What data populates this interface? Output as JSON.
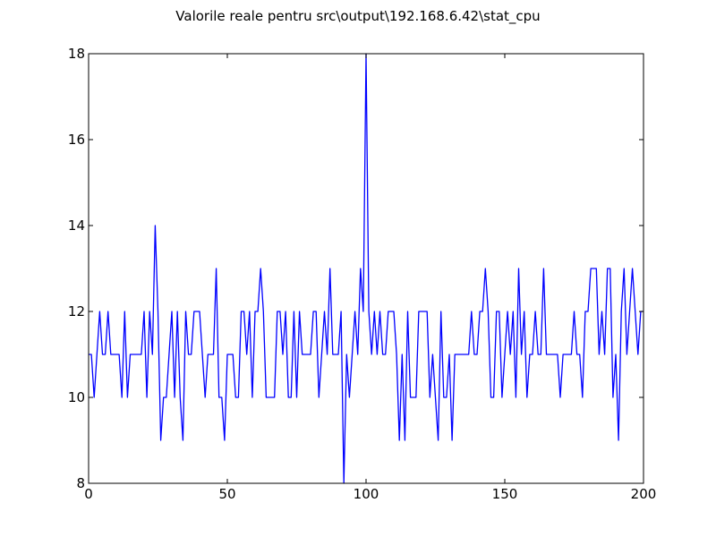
{
  "chart_data": {
    "type": "line",
    "title": "Valorile reale pentru src\\output\\192.168.6.42\\stat_cpu",
    "xlabel": "",
    "ylabel": "",
    "xlim": [
      0,
      200
    ],
    "ylim": [
      8,
      18
    ],
    "xticks": [
      0,
      50,
      100,
      150,
      200
    ],
    "yticks": [
      8,
      10,
      12,
      14,
      16,
      18
    ],
    "grid": false,
    "series": [
      {
        "color": "#0000ff",
        "x": [
          0,
          1,
          2,
          3,
          4,
          5,
          6,
          7,
          8,
          9,
          10,
          11,
          12,
          13,
          14,
          15,
          16,
          17,
          18,
          19,
          20,
          21,
          22,
          23,
          24,
          25,
          26,
          27,
          28,
          29,
          30,
          31,
          32,
          33,
          34,
          35,
          36,
          37,
          38,
          39,
          40,
          41,
          42,
          43,
          44,
          45,
          46,
          47,
          48,
          49,
          50,
          51,
          52,
          53,
          54,
          55,
          56,
          57,
          58,
          59,
          60,
          61,
          62,
          63,
          64,
          65,
          66,
          67,
          68,
          69,
          70,
          71,
          72,
          73,
          74,
          75,
          76,
          77,
          78,
          79,
          80,
          81,
          82,
          83,
          84,
          85,
          86,
          87,
          88,
          89,
          90,
          91,
          92,
          93,
          94,
          95,
          96,
          97,
          98,
          99,
          100,
          101,
          102,
          103,
          104,
          105,
          106,
          107,
          108,
          109,
          110,
          111,
          112,
          113,
          114,
          115,
          116,
          117,
          118,
          119,
          120,
          121,
          122,
          123,
          124,
          125,
          126,
          127,
          128,
          129,
          130,
          131,
          132,
          133,
          134,
          135,
          136,
          137,
          138,
          139,
          140,
          141,
          142,
          143,
          144,
          145,
          146,
          147,
          148,
          149,
          150,
          151,
          152,
          153,
          154,
          155,
          156,
          157,
          158,
          159,
          160,
          161,
          162,
          163,
          164,
          165,
          166,
          167,
          168,
          169,
          170,
          171,
          172,
          173,
          174,
          175,
          176,
          177,
          178,
          179,
          180,
          181,
          182,
          183,
          184,
          185,
          186,
          187,
          188,
          189,
          190,
          191,
          192,
          193,
          194,
          195,
          196,
          197,
          198,
          199,
          200
        ],
        "y": [
          11,
          11,
          10,
          11,
          12,
          11,
          11,
          12,
          11,
          11,
          11,
          11,
          10,
          12,
          10,
          11,
          11,
          11,
          11,
          11,
          12,
          10,
          12,
          11,
          14,
          12,
          9,
          10,
          10,
          11,
          12,
          10,
          12,
          10,
          9,
          12,
          11,
          11,
          12,
          12,
          12,
          11,
          10,
          11,
          11,
          11,
          13,
          10,
          10,
          9,
          11,
          11,
          11,
          10,
          10,
          12,
          12,
          11,
          12,
          10,
          12,
          12,
          13,
          12,
          10,
          10,
          10,
          10,
          12,
          12,
          11,
          12,
          10,
          10,
          12,
          10,
          12,
          11,
          11,
          11,
          11,
          12,
          12,
          10,
          11,
          12,
          11,
          13,
          11,
          11,
          11,
          12,
          8,
          11,
          10,
          11,
          12,
          11,
          13,
          12,
          18,
          12,
          11,
          12,
          11,
          12,
          11,
          11,
          12,
          12,
          12,
          11,
          9,
          11,
          9,
          12,
          10,
          10,
          10,
          12,
          12,
          12,
          12,
          10,
          11,
          10,
          9,
          12,
          10,
          10,
          11,
          9,
          11,
          11,
          11,
          11,
          11,
          11,
          12,
          11,
          11,
          12,
          12,
          13,
          12,
          10,
          10,
          12,
          12,
          10,
          11,
          12,
          11,
          12,
          10,
          13,
          11,
          12,
          10,
          11,
          11,
          12,
          11,
          11,
          13,
          11,
          11,
          11,
          11,
          11,
          10,
          11,
          11,
          11,
          11,
          12,
          11,
          11,
          10,
          12,
          12,
          13,
          13,
          13,
          11,
          12,
          11,
          13,
          13,
          10,
          11,
          9,
          12,
          13,
          11,
          12,
          13,
          12,
          11,
          12,
          12
        ]
      }
    ]
  }
}
